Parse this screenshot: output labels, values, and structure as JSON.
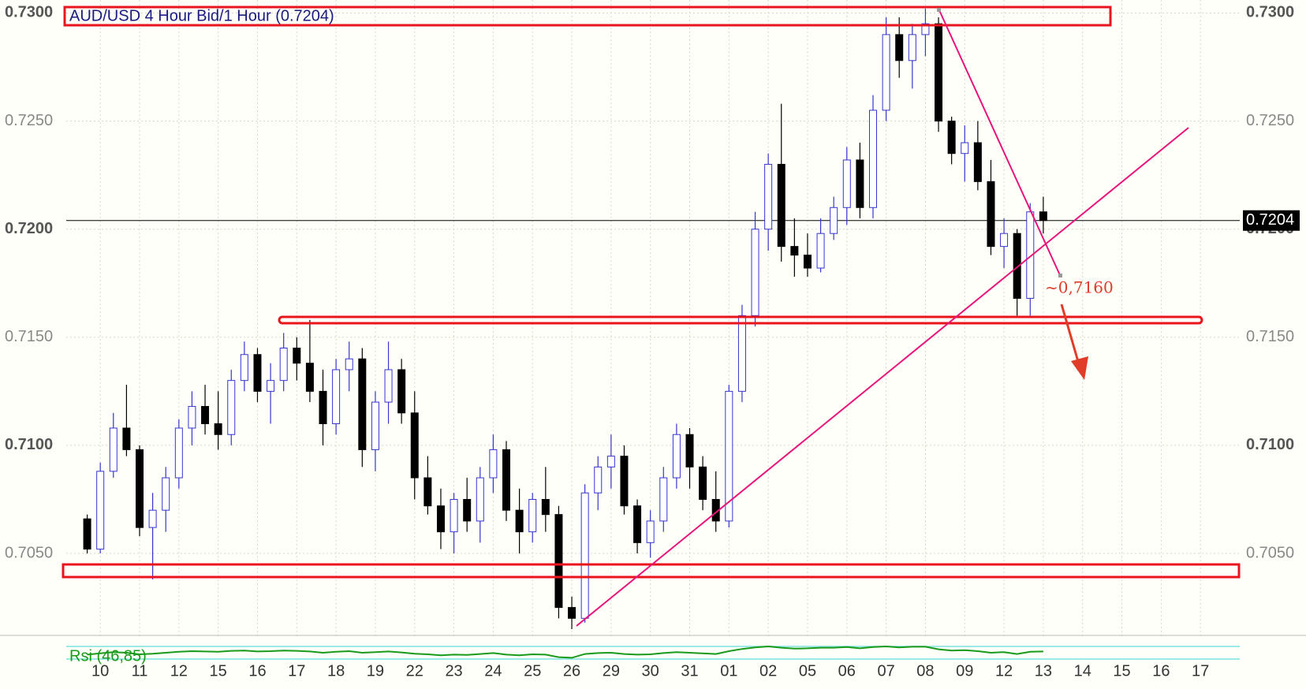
{
  "chart_data": {
    "type": "candlestick",
    "title": "AUD/USD 4 Hour Bid/1 Hour (0.7204)",
    "annotation": "~0,7160",
    "indicator_label": "Rsi (46,85)",
    "last_price": 0.7204,
    "up_color": "#ffffff",
    "up_edge": "#3535d0",
    "down_color": "#000000",
    "grid": true,
    "xlim": [
      -1.6,
      88
    ],
    "ylim": [
      0.7011,
      0.7306
    ],
    "yticks": [
      {
        "value": 0.705,
        "label": "0.7050"
      },
      {
        "value": 0.71,
        "label": "0.7100"
      },
      {
        "value": 0.715,
        "label": "0.7150"
      },
      {
        "value": 0.72,
        "label": "0.7200"
      },
      {
        "value": 0.725,
        "label": "0.7250"
      },
      {
        "value": 0.73,
        "label": "0.7300"
      }
    ],
    "xticks": [
      {
        "value": 1,
        "label": "10"
      },
      {
        "value": 4,
        "label": "11"
      },
      {
        "value": 7,
        "label": "12"
      },
      {
        "value": 10,
        "label": "15"
      },
      {
        "value": 13,
        "label": "16"
      },
      {
        "value": 16,
        "label": "17"
      },
      {
        "value": 19,
        "label": "18"
      },
      {
        "value": 22,
        "label": "19"
      },
      {
        "value": 25,
        "label": "22"
      },
      {
        "value": 28,
        "label": "23"
      },
      {
        "value": 31,
        "label": "24"
      },
      {
        "value": 34,
        "label": "25"
      },
      {
        "value": 37,
        "label": "26"
      },
      {
        "value": 40,
        "label": "29"
      },
      {
        "value": 43,
        "label": "30"
      },
      {
        "value": 46,
        "label": "31"
      },
      {
        "value": 49,
        "label": "01"
      },
      {
        "value": 52,
        "label": "02"
      },
      {
        "value": 55,
        "label": "05"
      },
      {
        "value": 58,
        "label": "06"
      },
      {
        "value": 61,
        "label": "07"
      },
      {
        "value": 64,
        "label": "08"
      },
      {
        "value": 67,
        "label": "09"
      },
      {
        "value": 70,
        "label": "12"
      },
      {
        "value": 73,
        "label": "13"
      },
      {
        "value": 76,
        "label": "14"
      },
      {
        "value": 79,
        "label": "15"
      },
      {
        "value": 82,
        "label": "16"
      },
      {
        "value": 85,
        "label": "17"
      }
    ],
    "x": [
      0,
      1,
      2,
      3,
      4,
      5,
      6,
      7,
      8,
      9,
      10,
      11,
      12,
      13,
      14,
      15,
      16,
      17,
      18,
      19,
      20,
      21,
      22,
      23,
      24,
      25,
      26,
      27,
      28,
      29,
      30,
      31,
      32,
      33,
      34,
      35,
      36,
      37,
      38,
      39,
      40,
      41,
      42,
      43,
      44,
      45,
      46,
      47,
      48,
      49,
      50,
      51,
      52,
      53,
      54,
      55,
      56,
      57,
      58,
      59,
      60,
      61,
      62,
      63,
      64,
      65,
      66,
      67,
      68,
      69,
      70,
      71,
      72,
      73
    ],
    "open": [
      0.7066,
      0.7052,
      0.7088,
      0.7108,
      0.7098,
      0.7062,
      0.707,
      0.7085,
      0.7108,
      0.7118,
      0.711,
      0.7105,
      0.713,
      0.7142,
      0.7125,
      0.713,
      0.7145,
      0.7138,
      0.7125,
      0.711,
      0.7135,
      0.714,
      0.7098,
      0.712,
      0.7135,
      0.7115,
      0.7085,
      0.7072,
      0.706,
      0.7075,
      0.7065,
      0.7085,
      0.7098,
      0.707,
      0.706,
      0.7075,
      0.7068,
      0.7025,
      0.702,
      0.7078,
      0.709,
      0.7095,
      0.7072,
      0.7055,
      0.7065,
      0.7085,
      0.7105,
      0.709,
      0.7075,
      0.7065,
      0.7125,
      0.716,
      0.72,
      0.723,
      0.7192,
      0.7188,
      0.7182,
      0.7198,
      0.721,
      0.7232,
      0.721,
      0.7255,
      0.729,
      0.7278,
      0.729,
      0.7295,
      0.725,
      0.7235,
      0.724,
      0.7222,
      0.7192,
      0.7198,
      0.7168,
      0.7208
    ],
    "high": [
      0.7068,
      0.7092,
      0.7115,
      0.7128,
      0.71,
      0.7078,
      0.709,
      0.7112,
      0.7125,
      0.7128,
      0.7125,
      0.7135,
      0.7148,
      0.7145,
      0.7138,
      0.7152,
      0.715,
      0.7158,
      0.7135,
      0.714,
      0.7148,
      0.7145,
      0.7125,
      0.7148,
      0.714,
      0.7125,
      0.7095,
      0.708,
      0.7078,
      0.7085,
      0.709,
      0.7105,
      0.7102,
      0.708,
      0.7078,
      0.709,
      0.7072,
      0.703,
      0.7082,
      0.7095,
      0.7105,
      0.71,
      0.7075,
      0.707,
      0.709,
      0.711,
      0.7108,
      0.7095,
      0.7088,
      0.7128,
      0.7165,
      0.7208,
      0.7235,
      0.7258,
      0.7205,
      0.7198,
      0.7205,
      0.7215,
      0.7238,
      0.724,
      0.7262,
      0.7298,
      0.7298,
      0.7295,
      0.7302,
      0.7298,
      0.7252,
      0.7248,
      0.725,
      0.7232,
      0.7205,
      0.72,
      0.7212,
      0.7215
    ],
    "low": [
      0.705,
      0.705,
      0.7085,
      0.7095,
      0.7058,
      0.7038,
      0.706,
      0.708,
      0.71,
      0.7105,
      0.7098,
      0.71,
      0.7125,
      0.712,
      0.711,
      0.7125,
      0.713,
      0.712,
      0.71,
      0.7105,
      0.7125,
      0.709,
      0.7088,
      0.711,
      0.711,
      0.7075,
      0.7068,
      0.7052,
      0.705,
      0.706,
      0.7055,
      0.7078,
      0.7065,
      0.705,
      0.7055,
      0.706,
      0.702,
      0.7015,
      0.7018,
      0.707,
      0.708,
      0.7068,
      0.705,
      0.7048,
      0.706,
      0.708,
      0.708,
      0.707,
      0.706,
      0.7062,
      0.712,
      0.7155,
      0.719,
      0.7185,
      0.7178,
      0.7178,
      0.718,
      0.7195,
      0.7202,
      0.7205,
      0.7205,
      0.725,
      0.727,
      0.7265,
      0.728,
      0.7245,
      0.723,
      0.7222,
      0.7218,
      0.7188,
      0.7182,
      0.716,
      0.716,
      0.7198
    ],
    "close": [
      0.7052,
      0.7088,
      0.7108,
      0.7098,
      0.7062,
      0.707,
      0.7085,
      0.7108,
      0.7118,
      0.711,
      0.7105,
      0.713,
      0.7142,
      0.7125,
      0.713,
      0.7145,
      0.7138,
      0.7125,
      0.711,
      0.7135,
      0.714,
      0.7098,
      0.712,
      0.7135,
      0.7115,
      0.7085,
      0.7072,
      0.706,
      0.7075,
      0.7065,
      0.7085,
      0.7098,
      0.707,
      0.706,
      0.7075,
      0.7068,
      0.7025,
      0.702,
      0.7078,
      0.709,
      0.7095,
      0.7072,
      0.7055,
      0.7065,
      0.7085,
      0.7105,
      0.709,
      0.7075,
      0.7065,
      0.7125,
      0.716,
      0.72,
      0.723,
      0.7192,
      0.7188,
      0.7182,
      0.7198,
      0.721,
      0.7232,
      0.721,
      0.7255,
      0.729,
      0.7278,
      0.729,
      0.7295,
      0.725,
      0.7235,
      0.724,
      0.7222,
      0.7192,
      0.7198,
      0.7168,
      0.7208,
      0.7204
    ],
    "rsi": {
      "color": "#1a9a1a",
      "level_color": "#7fe0e0",
      "ylim": [
        0,
        100
      ],
      "levels": [
        30,
        70
      ],
      "values": [
        44,
        48,
        52,
        50,
        45,
        47,
        50,
        53,
        55,
        54,
        53,
        56,
        57,
        54,
        55,
        57,
        56,
        54,
        50,
        53,
        55,
        50,
        52,
        54,
        51,
        47,
        45,
        42,
        44,
        43,
        46,
        49,
        44,
        42,
        45,
        44,
        36,
        34,
        46,
        49,
        50,
        46,
        44,
        45,
        49,
        52,
        50,
        48,
        46,
        55,
        62,
        67,
        70,
        66,
        63,
        64,
        66,
        66,
        68,
        64,
        68,
        70,
        67,
        69,
        69,
        61,
        57,
        58,
        55,
        50,
        52,
        46,
        53,
        54
      ]
    }
  }
}
